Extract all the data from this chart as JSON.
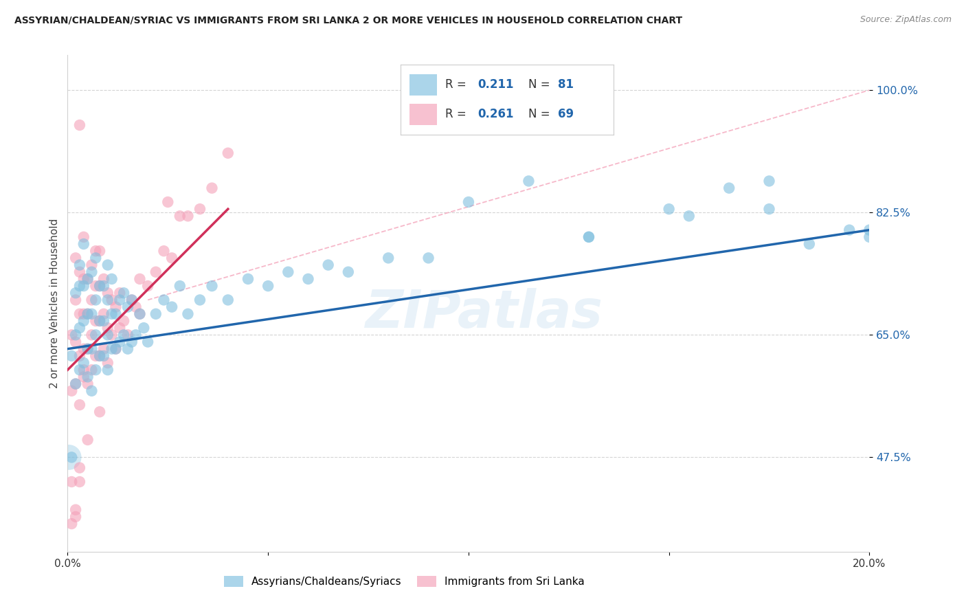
{
  "title": "ASSYRIAN/CHALDEAN/SYRIAC VS IMMIGRANTS FROM SRI LANKA 2 OR MORE VEHICLES IN HOUSEHOLD CORRELATION CHART",
  "source": "Source: ZipAtlas.com",
  "ylabel": "2 or more Vehicles in Household",
  "ytick_labels": [
    "47.5%",
    "65.0%",
    "82.5%",
    "100.0%"
  ],
  "ytick_values": [
    0.475,
    0.65,
    0.825,
    1.0
  ],
  "xtick_labels": [
    "0.0%",
    "",
    "",
    "",
    "20.0%"
  ],
  "xtick_values": [
    0.0,
    0.05,
    0.1,
    0.15,
    0.2
  ],
  "xmin": 0.0,
  "xmax": 0.2,
  "ymin": 0.34,
  "ymax": 1.05,
  "blue_R": "0.211",
  "blue_N": "81",
  "pink_R": "0.261",
  "pink_N": "69",
  "blue_color": "#7fbfdf",
  "pink_color": "#f4a0b8",
  "blue_edge_color": "#5a9ec0",
  "pink_edge_color": "#e07090",
  "blue_line_color": "#2166ac",
  "pink_line_color": "#d0305a",
  "ref_line_color": "#f4a0b8",
  "legend_label_blue": "Assyrians/Chaldeans/Syriacs",
  "legend_label_pink": "Immigrants from Sri Lanka",
  "blue_scatter_x": [
    0.001,
    0.001,
    0.002,
    0.002,
    0.002,
    0.003,
    0.003,
    0.003,
    0.003,
    0.004,
    0.004,
    0.004,
    0.004,
    0.005,
    0.005,
    0.005,
    0.005,
    0.006,
    0.006,
    0.006,
    0.006,
    0.007,
    0.007,
    0.007,
    0.007,
    0.008,
    0.008,
    0.008,
    0.009,
    0.009,
    0.009,
    0.01,
    0.01,
    0.01,
    0.01,
    0.011,
    0.011,
    0.011,
    0.012,
    0.012,
    0.013,
    0.013,
    0.014,
    0.014,
    0.015,
    0.015,
    0.016,
    0.016,
    0.017,
    0.018,
    0.019,
    0.02,
    0.022,
    0.024,
    0.026,
    0.028,
    0.03,
    0.033,
    0.036,
    0.04,
    0.045,
    0.05,
    0.055,
    0.06,
    0.065,
    0.07,
    0.08,
    0.09,
    0.1,
    0.115,
    0.13,
    0.15,
    0.165,
    0.175,
    0.185,
    0.195,
    0.2,
    0.2,
    0.175,
    0.155,
    0.13
  ],
  "blue_scatter_y": [
    0.475,
    0.62,
    0.58,
    0.65,
    0.71,
    0.6,
    0.66,
    0.72,
    0.75,
    0.61,
    0.67,
    0.72,
    0.78,
    0.59,
    0.63,
    0.68,
    0.73,
    0.57,
    0.63,
    0.68,
    0.74,
    0.6,
    0.65,
    0.7,
    0.76,
    0.62,
    0.67,
    0.72,
    0.62,
    0.67,
    0.72,
    0.6,
    0.65,
    0.7,
    0.75,
    0.63,
    0.68,
    0.73,
    0.63,
    0.68,
    0.64,
    0.7,
    0.65,
    0.71,
    0.63,
    0.69,
    0.64,
    0.7,
    0.65,
    0.68,
    0.66,
    0.64,
    0.68,
    0.7,
    0.69,
    0.72,
    0.68,
    0.7,
    0.72,
    0.7,
    0.73,
    0.72,
    0.74,
    0.73,
    0.75,
    0.74,
    0.76,
    0.76,
    0.84,
    0.87,
    0.79,
    0.83,
    0.86,
    0.83,
    0.78,
    0.8,
    0.8,
    0.79,
    0.87,
    0.82,
    0.79
  ],
  "blue_scatter_large_x": [
    0.0003
  ],
  "blue_scatter_large_y": [
    0.475
  ],
  "pink_scatter_x": [
    0.001,
    0.001,
    0.001,
    0.002,
    0.002,
    0.002,
    0.002,
    0.003,
    0.003,
    0.003,
    0.003,
    0.003,
    0.004,
    0.004,
    0.004,
    0.004,
    0.004,
    0.005,
    0.005,
    0.005,
    0.005,
    0.006,
    0.006,
    0.006,
    0.006,
    0.007,
    0.007,
    0.007,
    0.007,
    0.008,
    0.008,
    0.008,
    0.008,
    0.009,
    0.009,
    0.009,
    0.01,
    0.01,
    0.01,
    0.011,
    0.011,
    0.012,
    0.012,
    0.013,
    0.013,
    0.014,
    0.015,
    0.016,
    0.017,
    0.018,
    0.02,
    0.022,
    0.024,
    0.026,
    0.028,
    0.03,
    0.033,
    0.036,
    0.04,
    0.025,
    0.018,
    0.008,
    0.005,
    0.003,
    0.002,
    0.001,
    0.002,
    0.003,
    0.004
  ],
  "pink_scatter_y": [
    0.44,
    0.57,
    0.65,
    0.58,
    0.64,
    0.7,
    0.76,
    0.55,
    0.62,
    0.68,
    0.74,
    0.95,
    0.59,
    0.63,
    0.68,
    0.73,
    0.79,
    0.58,
    0.63,
    0.68,
    0.73,
    0.6,
    0.65,
    0.7,
    0.75,
    0.62,
    0.67,
    0.72,
    0.77,
    0.62,
    0.67,
    0.72,
    0.77,
    0.63,
    0.68,
    0.73,
    0.61,
    0.66,
    0.71,
    0.65,
    0.7,
    0.63,
    0.69,
    0.66,
    0.71,
    0.67,
    0.65,
    0.7,
    0.69,
    0.68,
    0.72,
    0.74,
    0.77,
    0.76,
    0.82,
    0.82,
    0.83,
    0.86,
    0.91,
    0.84,
    0.73,
    0.54,
    0.5,
    0.44,
    0.39,
    0.38,
    0.4,
    0.46,
    0.6
  ],
  "blue_line_x": [
    0.0,
    0.2
  ],
  "blue_line_y": [
    0.63,
    0.8
  ],
  "pink_line_x": [
    0.0,
    0.04
  ],
  "pink_line_y": [
    0.6,
    0.83
  ],
  "ref_line_x": [
    0.02,
    0.2
  ],
  "ref_line_y": [
    0.7,
    1.0
  ],
  "watermark_text": "ZIPatlas",
  "background_color": "#ffffff",
  "grid_color": "#d0d0d0"
}
